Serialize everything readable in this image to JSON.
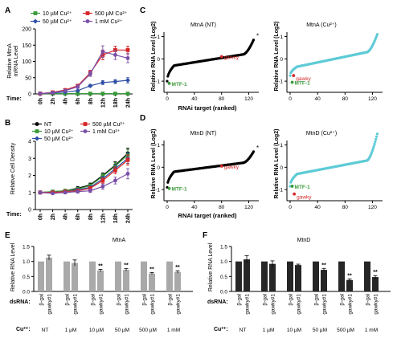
{
  "colors": {
    "green": "#3a9a3a",
    "red": "#d62728",
    "blue": "#2f4fa6",
    "purple": "#7a4fa8",
    "black": "#000000",
    "cyan": "#5ecbd6",
    "gray": "#a9a9a9",
    "dark": "#262626"
  },
  "panels": {
    "A": {
      "letter": "A",
      "ylabel": [
        "Relative MtnA",
        "mRNA Level"
      ],
      "time_label": "Time:",
      "xticks": [
        "0h",
        "2h",
        "4h",
        "6h",
        "8h",
        "12h",
        "18h",
        "24h"
      ],
      "yticks": [
        "0",
        "50",
        "100",
        "150",
        "200"
      ],
      "legend": [
        "10 µM Cu²⁺",
        "500 µM Cu²⁺",
        "50 µM Cu²⁺",
        "1 mM Cu²⁺"
      ]
    },
    "B": {
      "letter": "B",
      "ylabel": [
        "Relative Cell Density"
      ],
      "time_label": "Time:",
      "xticks": [
        "0h",
        "2h",
        "4h",
        "6h",
        "8h",
        "12h",
        "18h",
        "24h"
      ],
      "yticks": [
        "0",
        "1",
        "2",
        "3",
        "4"
      ],
      "legend": [
        "NT",
        "500 µM Cu²⁺",
        "10 µM Cu²⁺",
        "1 mM Cu²⁺",
        "50 µM Cu²⁺"
      ]
    },
    "C": {
      "letter": "C",
      "left_title": "MtnA (NT)",
      "right_title": "MtnA (Cu²⁺)",
      "ylabel": "Relative RNA Level (Log2)",
      "xlabel": "RNAi target (ranked)",
      "xticks": [
        "0",
        "40",
        "80",
        "120"
      ],
      "yticks": [
        "-1",
        "0",
        "1"
      ],
      "left_labels": {
        "gawky": "gawky",
        "mtf1": "MTF-1"
      },
      "right_labels": {
        "gawky": "gawky",
        "mtf1": "MTF-1"
      },
      "star": "*"
    },
    "D": {
      "letter": "D",
      "left_title": "MtnD (NT)",
      "right_title": "MtnD (Cu²⁺)",
      "ylabel": "Relative RNA Level (Log2)",
      "xlabel": "RNAi target (ranked)",
      "xticks": [
        "0",
        "40",
        "80",
        "120"
      ],
      "yticks": [
        "-1",
        "0",
        "1"
      ],
      "left_labels": {
        "gawky": "gawky",
        "mtf1": "MTF-1"
      },
      "right_labels": {
        "gawky": "gawky",
        "mtf1": "MTF-1"
      },
      "star": "*"
    },
    "E": {
      "letter": "E",
      "title": "MtnA",
      "ylabel": "Relative RNA Level",
      "yticks": [
        "0.0",
        "0.5",
        "1.0",
        "1.5"
      ],
      "dsrna_label": "dsRNA:",
      "bar_labels": [
        "β-gal",
        "gawky#1"
      ],
      "cu_label": "Cu²⁺:",
      "groups": [
        "NT",
        "1 µM",
        "10 µM",
        "50 µM",
        "500 µM",
        "1 mM"
      ],
      "sig": "**"
    },
    "F": {
      "letter": "F",
      "title": "MtnD",
      "ylabel": "Relative RNA Level",
      "yticks": [
        "0.0",
        "0.5",
        "1.0",
        "1.5"
      ],
      "dsrna_label": "dsRNA:",
      "bar_labels": [
        "β-gal",
        "gawky#1"
      ],
      "cu_label": "Cu²⁺:",
      "groups": [
        "NT",
        "1 µM",
        "10 µM",
        "50 µM",
        "500 µM",
        "1 mM"
      ],
      "sig": "**"
    }
  },
  "chart_data": [
    {
      "panel": "A",
      "type": "line",
      "x": [
        "0h",
        "2h",
        "4h",
        "6h",
        "8h",
        "12h",
        "18h",
        "24h"
      ],
      "ylim": [
        0,
        200
      ],
      "series": [
        {
          "name": "10 µM Cu²⁺",
          "color": "green",
          "marker": "square",
          "values": [
            1,
            1,
            1,
            1,
            1,
            1,
            1,
            1
          ],
          "err": [
            0,
            0,
            0,
            0,
            0,
            0,
            0,
            0
          ]
        },
        {
          "name": "50 µM Cu²⁺",
          "color": "blue",
          "marker": "diamond",
          "values": [
            1,
            3,
            6,
            10,
            25,
            35,
            38,
            42
          ],
          "err": [
            0,
            1,
            2,
            2,
            4,
            6,
            6,
            8
          ]
        },
        {
          "name": "500 µM Cu²⁺",
          "color": "red",
          "marker": "square",
          "values": [
            1,
            5,
            12,
            25,
            65,
            120,
            135,
            135
          ],
          "err": [
            0,
            2,
            3,
            5,
            8,
            15,
            12,
            12
          ]
        },
        {
          "name": "1 mM Cu²⁺",
          "color": "purple",
          "marker": "circle",
          "values": [
            1,
            4,
            10,
            22,
            62,
            130,
            120,
            110
          ],
          "err": [
            0,
            2,
            3,
            5,
            8,
            18,
            14,
            14
          ]
        }
      ]
    },
    {
      "panel": "B",
      "type": "line",
      "x": [
        "0h",
        "2h",
        "4h",
        "6h",
        "8h",
        "12h",
        "18h",
        "24h"
      ],
      "ylim": [
        0,
        4
      ],
      "series": [
        {
          "name": "NT",
          "color": "black",
          "marker": "circle",
          "values": [
            1.0,
            1.05,
            1.1,
            1.25,
            1.45,
            2.0,
            2.6,
            3.3
          ],
          "err": [
            0.05,
            0.05,
            0.08,
            0.1,
            0.1,
            0.15,
            0.2,
            0.3
          ]
        },
        {
          "name": "10 µM Cu²⁺",
          "color": "green",
          "marker": "square",
          "values": [
            1.0,
            1.05,
            1.1,
            1.2,
            1.4,
            1.95,
            2.55,
            3.2
          ],
          "err": [
            0.05,
            0.05,
            0.08,
            0.1,
            0.1,
            0.15,
            0.2,
            0.3
          ]
        },
        {
          "name": "50 µM Cu²⁺",
          "color": "blue",
          "marker": "diamond",
          "values": [
            1.0,
            1.0,
            1.05,
            1.15,
            1.3,
            1.8,
            2.4,
            3.0
          ],
          "err": [
            0.05,
            0.05,
            0.08,
            0.1,
            0.1,
            0.15,
            0.2,
            0.3
          ]
        },
        {
          "name": "500 µM Cu²⁺",
          "color": "red",
          "marker": "square",
          "values": [
            1.0,
            1.0,
            1.05,
            1.1,
            1.25,
            1.7,
            2.3,
            2.9
          ],
          "err": [
            0.05,
            0.05,
            0.08,
            0.1,
            0.1,
            0.15,
            0.2,
            0.3
          ]
        },
        {
          "name": "1 mM Cu²⁺",
          "color": "purple",
          "marker": "circle",
          "values": [
            1.0,
            0.95,
            1.0,
            1.05,
            1.1,
            1.35,
            1.7,
            2.1
          ],
          "err": [
            0.05,
            0.05,
            0.08,
            0.08,
            0.1,
            0.15,
            0.2,
            0.3
          ]
        }
      ]
    },
    {
      "panel": "C",
      "subplot": "MtnA (NT)",
      "type": "scatter",
      "xlim": [
        0,
        130
      ],
      "ylim": [
        -1.5,
        1.2
      ],
      "n": 128,
      "color": "black",
      "curve": {
        "start": -1.0,
        "plateau_low": -0.3,
        "plateau_high": 0.2,
        "end": 0.85
      },
      "gawky": {
        "x": 80,
        "y": 0.1
      },
      "mtf1": {
        "x": 3,
        "y": -1.1
      }
    },
    {
      "panel": "C",
      "subplot": "MtnA (Cu²⁺)",
      "type": "scatter",
      "xlim": [
        0,
        130
      ],
      "ylim": [
        -1.5,
        1.2
      ],
      "n": 128,
      "color": "cyan",
      "curve": {
        "start": -0.75,
        "plateau_low": -0.35,
        "plateau_high": 0.3,
        "end": 1.1
      },
      "gawky": {
        "x": 5,
        "y": -0.75
      },
      "mtf1": {
        "x": 3,
        "y": -1.05
      }
    },
    {
      "panel": "D",
      "subplot": "MtnD (NT)",
      "type": "scatter",
      "xlim": [
        0,
        130
      ],
      "ylim": [
        -1.5,
        1.2
      ],
      "n": 128,
      "color": "black",
      "curve": {
        "start": -0.9,
        "plateau_low": -0.2,
        "plateau_high": 0.2,
        "end": 0.7
      },
      "gawky": {
        "x": 80,
        "y": 0.05
      },
      "mtf1": {
        "x": 3,
        "y": -0.95
      }
    },
    {
      "panel": "D",
      "subplot": "MtnD (Cu²⁺)",
      "type": "scatter",
      "xlim": [
        0,
        130
      ],
      "ylim": [
        -1.5,
        1.2
      ],
      "n": 128,
      "color": "cyan",
      "curve": {
        "start": -0.85,
        "plateau_low": -0.3,
        "plateau_high": 0.3,
        "end": 1.5
      },
      "gawky": {
        "x": 6,
        "y": -1.2
      },
      "mtf1": {
        "x": 3,
        "y": -0.85
      }
    },
    {
      "panel": "E",
      "type": "bar",
      "groups": [
        "NT",
        "1 µM",
        "10 µM",
        "50 µM",
        "500 µM",
        "1 mM"
      ],
      "series": [
        {
          "name": "β-gal",
          "color": "gray",
          "values": [
            1.0,
            1.0,
            1.0,
            1.0,
            1.0,
            1.0
          ],
          "err": [
            0,
            0,
            0,
            0,
            0,
            0
          ]
        },
        {
          "name": "gawky#1",
          "color": "gray",
          "values": [
            1.13,
            0.95,
            0.7,
            0.72,
            0.6,
            0.65
          ],
          "err": [
            0.08,
            0.1,
            0.04,
            0.04,
            0.03,
            0.04
          ]
        }
      ],
      "sig": [
        false,
        false,
        true,
        true,
        true,
        true
      ],
      "ylim": [
        0,
        1.5
      ]
    },
    {
      "panel": "F",
      "type": "bar",
      "groups": [
        "NT",
        "1 µM",
        "10 µM",
        "50 µM",
        "500 µM",
        "1 mM"
      ],
      "series": [
        {
          "name": "β-gal",
          "color": "dark",
          "values": [
            1.0,
            1.0,
            1.0,
            1.0,
            1.0,
            1.0
          ],
          "err": [
            0,
            0,
            0,
            0,
            0,
            0
          ]
        },
        {
          "name": "gawky#1",
          "color": "dark",
          "values": [
            1.07,
            0.92,
            0.88,
            0.72,
            0.38,
            0.48
          ],
          "err": [
            0.12,
            0.1,
            0.03,
            0.05,
            0.04,
            0.05
          ]
        }
      ],
      "sig": [
        false,
        false,
        false,
        true,
        true,
        true
      ],
      "ylim": [
        0,
        1.5
      ]
    }
  ]
}
